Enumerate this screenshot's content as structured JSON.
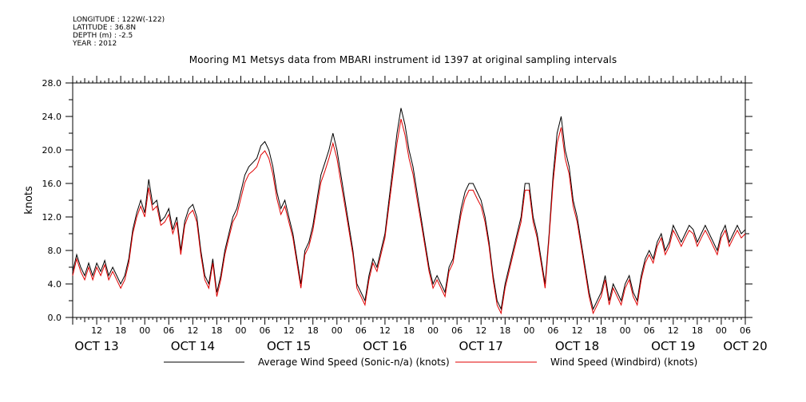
{
  "metadata": [
    "LONGITUDE : 122W(-122)",
    "LATITUDE : 36.8N",
    "DEPTH (m) : -2.5",
    "YEAR : 2012"
  ],
  "chart_data": {
    "type": "line",
    "title": "Mooring M1 Metsys data from MBARI instrument id 1397 at original sampling intervals",
    "ylabel": "knots",
    "xlabel": "",
    "ylim": [
      0,
      28
    ],
    "yticks": [
      0.0,
      4.0,
      8.0,
      12.0,
      16.0,
      20.0,
      24.0,
      28.0
    ],
    "ytick_labels": [
      "0.0",
      "4.0",
      "8.0",
      "12.0",
      "16.0",
      "20.0",
      "24.0",
      "28.0"
    ],
    "xlim_hours": [
      6,
      174
    ],
    "x_unit": "hours since OCT 13 00:00",
    "xtick_labels": [
      {
        "h": 12,
        "label": "12"
      },
      {
        "h": 18,
        "label": "18"
      },
      {
        "h": 24,
        "label": "00"
      },
      {
        "h": 30,
        "label": "06"
      },
      {
        "h": 36,
        "label": "12"
      },
      {
        "h": 42,
        "label": "18"
      },
      {
        "h": 48,
        "label": "00"
      },
      {
        "h": 54,
        "label": "06"
      },
      {
        "h": 60,
        "label": "12"
      },
      {
        "h": 66,
        "label": "18"
      },
      {
        "h": 72,
        "label": "00"
      },
      {
        "h": 78,
        "label": "06"
      },
      {
        "h": 84,
        "label": "12"
      },
      {
        "h": 90,
        "label": "18"
      },
      {
        "h": 96,
        "label": "00"
      },
      {
        "h": 102,
        "label": "06"
      },
      {
        "h": 108,
        "label": "12"
      },
      {
        "h": 114,
        "label": "18"
      },
      {
        "h": 120,
        "label": "00"
      },
      {
        "h": 126,
        "label": "06"
      },
      {
        "h": 132,
        "label": "12"
      },
      {
        "h": 138,
        "label": "18"
      },
      {
        "h": 144,
        "label": "00"
      },
      {
        "h": 150,
        "label": "06"
      },
      {
        "h": 156,
        "label": "12"
      },
      {
        "h": 162,
        "label": "18"
      },
      {
        "h": 168,
        "label": "00"
      },
      {
        "h": 174,
        "label": "06"
      }
    ],
    "day_labels": [
      {
        "h": 12,
        "label": "OCT 13"
      },
      {
        "h": 36,
        "label": "OCT 14"
      },
      {
        "h": 60,
        "label": "OCT 15"
      },
      {
        "h": 84,
        "label": "OCT 16"
      },
      {
        "h": 108,
        "label": "OCT 17"
      },
      {
        "h": 132,
        "label": "OCT 18"
      },
      {
        "h": 156,
        "label": "OCT 19"
      },
      {
        "h": 174,
        "label": "OCT 20"
      }
    ],
    "series": [
      {
        "name": "Average Wind Speed (Sonic-n/a) (knots)",
        "color": "#000000",
        "x": [
          6,
          7,
          8,
          9,
          10,
          11,
          12,
          13,
          14,
          15,
          16,
          17,
          18,
          19,
          20,
          21,
          22,
          23,
          24,
          25,
          26,
          27,
          28,
          29,
          30,
          31,
          32,
          33,
          34,
          35,
          36,
          37,
          38,
          39,
          40,
          41,
          42,
          43,
          44,
          45,
          46,
          47,
          48,
          49,
          50,
          51,
          52,
          53,
          54,
          55,
          56,
          57,
          58,
          59,
          60,
          61,
          62,
          63,
          64,
          65,
          66,
          67,
          68,
          69,
          70,
          71,
          72,
          73,
          74,
          75,
          76,
          77,
          78,
          79,
          80,
          81,
          82,
          83,
          84,
          85,
          86,
          87,
          88,
          89,
          90,
          91,
          92,
          93,
          94,
          95,
          96,
          97,
          98,
          99,
          100,
          101,
          102,
          103,
          104,
          105,
          106,
          107,
          108,
          109,
          110,
          111,
          112,
          113,
          114,
          115,
          116,
          117,
          118,
          119,
          120,
          121,
          122,
          123,
          124,
          125,
          126,
          127,
          128,
          129,
          130,
          131,
          132,
          133,
          134,
          135,
          136,
          137,
          138,
          139,
          140,
          141,
          142,
          143,
          144,
          145,
          146,
          147,
          148,
          149,
          150,
          151,
          152,
          153,
          154,
          155,
          156,
          157,
          158,
          159,
          160,
          161,
          162,
          163,
          164,
          165,
          166,
          167,
          168,
          169,
          170,
          171,
          172,
          173,
          174
        ],
        "values": [
          5.5,
          7.5,
          6.0,
          5.0,
          6.5,
          5.0,
          6.5,
          5.5,
          6.8,
          5.0,
          6.0,
          5.0,
          4.0,
          5.0,
          7.0,
          10.5,
          12.5,
          14.0,
          12.5,
          16.5,
          13.5,
          14.0,
          11.5,
          12.0,
          13.0,
          10.5,
          12.0,
          8.0,
          11.5,
          13.0,
          13.5,
          12.0,
          8.0,
          5.0,
          4.0,
          7.0,
          3.0,
          5.0,
          8.0,
          10.0,
          12.0,
          13.0,
          15.0,
          17.0,
          18.0,
          18.5,
          19.0,
          20.5,
          21.0,
          20.0,
          18.0,
          15.0,
          13.0,
          14.0,
          12.0,
          10.0,
          7.0,
          4.0,
          8.0,
          9.0,
          11.0,
          14.0,
          17.0,
          18.5,
          20.0,
          22.0,
          20.0,
          17.0,
          14.0,
          11.0,
          8.0,
          4.0,
          3.0,
          2.0,
          5.0,
          7.0,
          6.0,
          8.0,
          10.0,
          14.0,
          18.0,
          22.0,
          25.0,
          23.0,
          20.0,
          18.0,
          15.0,
          12.0,
          9.0,
          6.0,
          4.0,
          5.0,
          4.0,
          3.0,
          6.0,
          7.0,
          10.0,
          13.0,
          15.0,
          16.0,
          16.0,
          15.0,
          14.0,
          12.0,
          9.0,
          5.0,
          2.0,
          1.0,
          4.0,
          6.0,
          8.0,
          10.0,
          12.0,
          16.0,
          16.0,
          12.0,
          10.0,
          7.0,
          4.0,
          10.0,
          17.0,
          22.0,
          24.0,
          20.0,
          18.0,
          14.0,
          12.0,
          9.0,
          6.0,
          3.0,
          1.0,
          2.0,
          3.0,
          5.0,
          2.0,
          4.0,
          3.0,
          2.0,
          4.0,
          5.0,
          3.0,
          2.0,
          5.0,
          7.0,
          8.0,
          7.0,
          9.0,
          10.0,
          8.0,
          9.0,
          11.0,
          10.0,
          9.0,
          10.0,
          11.0,
          10.5,
          9.0,
          10.0,
          11.0,
          10.0,
          9.0,
          8.0,
          10.0,
          11.0,
          9.0,
          10.0,
          11.0,
          10.0,
          10.5
        ]
      },
      {
        "name": "Wind Speed (Windbird) (knots)",
        "color": "#e00000",
        "x": [
          6,
          7,
          8,
          9,
          10,
          11,
          12,
          13,
          14,
          15,
          16,
          17,
          18,
          19,
          20,
          21,
          22,
          23,
          24,
          25,
          26,
          27,
          28,
          29,
          30,
          31,
          32,
          33,
          34,
          35,
          36,
          37,
          38,
          39,
          40,
          41,
          42,
          43,
          44,
          45,
          46,
          47,
          48,
          49,
          50,
          51,
          52,
          53,
          54,
          55,
          56,
          57,
          58,
          59,
          60,
          61,
          62,
          63,
          64,
          65,
          66,
          67,
          68,
          69,
          70,
          71,
          72,
          73,
          74,
          75,
          76,
          77,
          78,
          79,
          80,
          81,
          82,
          83,
          84,
          85,
          86,
          87,
          88,
          89,
          90,
          91,
          92,
          93,
          94,
          95,
          96,
          97,
          98,
          99,
          100,
          101,
          102,
          103,
          104,
          105,
          106,
          107,
          108,
          109,
          110,
          111,
          112,
          113,
          114,
          115,
          116,
          117,
          118,
          119,
          120,
          121,
          122,
          123,
          124,
          125,
          126,
          127,
          128,
          129,
          130,
          131,
          132,
          133,
          134,
          135,
          136,
          137,
          138,
          139,
          140,
          141,
          142,
          143,
          144,
          145,
          146,
          147,
          148,
          149,
          150,
          151,
          152,
          153,
          154,
          155,
          156,
          157,
          158,
          159,
          160,
          161,
          162,
          163,
          164,
          165,
          166,
          167,
          168,
          169,
          170,
          171,
          172,
          173,
          174
        ],
        "values": [
          5.0,
          7.0,
          5.5,
          4.5,
          6.0,
          4.5,
          6.0,
          5.0,
          6.3,
          4.5,
          5.5,
          4.5,
          3.5,
          4.5,
          6.5,
          10.0,
          12.0,
          13.3,
          12.0,
          15.5,
          12.8,
          13.3,
          11.0,
          11.4,
          12.3,
          10.0,
          11.4,
          7.5,
          11.0,
          12.3,
          12.8,
          11.4,
          7.5,
          4.5,
          3.5,
          6.5,
          2.5,
          4.5,
          7.5,
          9.5,
          11.4,
          12.3,
          14.2,
          16.1,
          17.1,
          17.5,
          18.0,
          19.4,
          19.9,
          19.0,
          17.1,
          14.2,
          12.3,
          13.3,
          11.4,
          9.5,
          6.5,
          3.5,
          7.5,
          8.5,
          10.4,
          13.3,
          16.1,
          17.5,
          19.0,
          20.8,
          19.0,
          16.1,
          13.3,
          10.4,
          7.5,
          3.5,
          2.5,
          1.5,
          4.5,
          6.5,
          5.5,
          7.5,
          9.5,
          13.3,
          17.1,
          20.8,
          23.7,
          21.8,
          19.0,
          17.1,
          14.2,
          11.4,
          8.5,
          5.5,
          3.5,
          4.5,
          3.5,
          2.5,
          5.5,
          6.5,
          9.5,
          12.3,
          14.2,
          15.2,
          15.2,
          14.2,
          13.3,
          11.4,
          8.5,
          4.5,
          1.5,
          0.5,
          3.5,
          5.5,
          7.5,
          9.5,
          11.4,
          15.2,
          15.2,
          11.4,
          9.5,
          6.5,
          3.5,
          9.5,
          16.1,
          20.8,
          22.7,
          19.0,
          17.1,
          13.3,
          11.4,
          8.5,
          5.5,
          2.5,
          0.5,
          1.5,
          2.5,
          4.5,
          1.5,
          3.5,
          2.5,
          1.5,
          3.5,
          4.5,
          2.5,
          1.5,
          4.5,
          6.5,
          7.5,
          6.5,
          8.5,
          9.5,
          7.5,
          8.5,
          10.4,
          9.5,
          8.5,
          9.5,
          10.4,
          10.0,
          8.5,
          9.5,
          10.4,
          9.5,
          8.5,
          7.5,
          9.5,
          10.4,
          8.5,
          9.5,
          10.4,
          9.5,
          10.0
        ]
      }
    ],
    "legend_placement": "bottom"
  }
}
